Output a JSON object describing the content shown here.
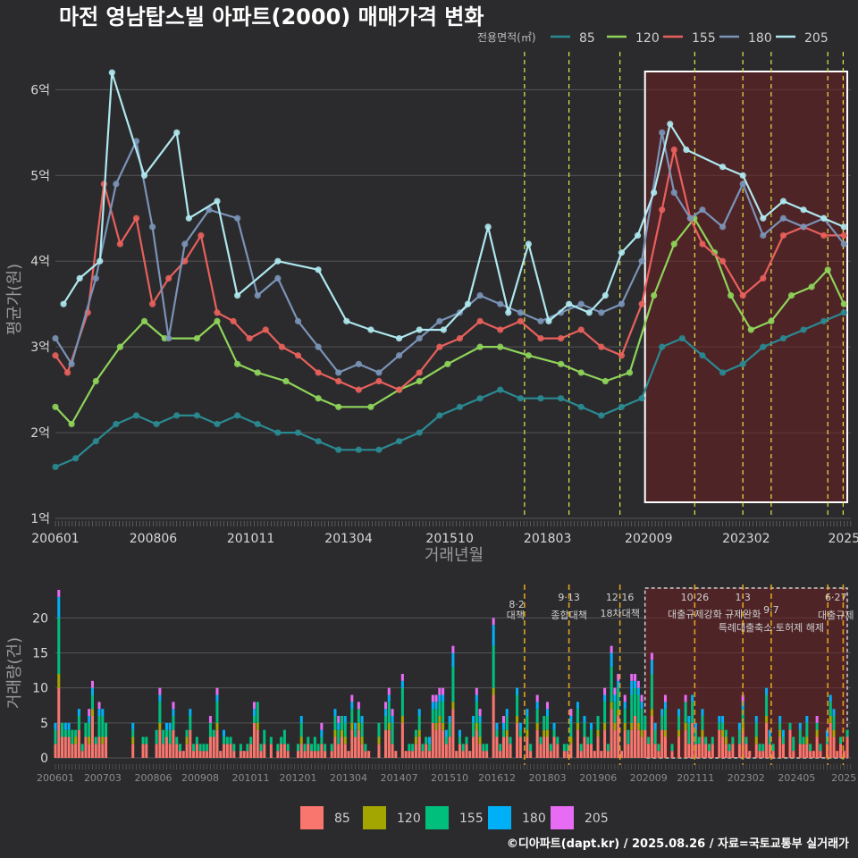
{
  "chart_data": [
    {
      "type": "line",
      "title": "마전 영남탑스빌 아파트(2000) 매매가격 변화",
      "xlabel": "거래년월",
      "ylabel": "평균가(원)",
      "legend_title": "전용면적(㎡)",
      "legend_position": "top-right",
      "x_ticks": [
        "200601",
        "200806",
        "201011",
        "201304",
        "201510",
        "201803",
        "202009",
        "202302",
        "2025"
      ],
      "y_ticks": [
        "1억",
        "2억",
        "3억",
        "4억",
        "5억",
        "6억"
      ],
      "ylim": [
        1.0,
        6.4
      ],
      "xlim": [
        2006.0,
        2025.67
      ],
      "grid": true,
      "series": [
        {
          "name": "85",
          "color": "#2a8a92",
          "points": [
            [
              2006.0,
              1.6
            ],
            [
              2006.5,
              1.7
            ],
            [
              2007.0,
              1.9
            ],
            [
              2007.5,
              2.1
            ],
            [
              2008.0,
              2.2
            ],
            [
              2008.5,
              2.1
            ],
            [
              2009.0,
              2.2
            ],
            [
              2009.5,
              2.2
            ],
            [
              2010.0,
              2.1
            ],
            [
              2010.5,
              2.2
            ],
            [
              2011.0,
              2.1
            ],
            [
              2011.5,
              2.0
            ],
            [
              2012.0,
              2.0
            ],
            [
              2012.5,
              1.9
            ],
            [
              2013.0,
              1.8
            ],
            [
              2013.5,
              1.8
            ],
            [
              2014.0,
              1.8
            ],
            [
              2014.5,
              1.9
            ],
            [
              2015.0,
              2.0
            ],
            [
              2015.5,
              2.2
            ],
            [
              2016.0,
              2.3
            ],
            [
              2016.5,
              2.4
            ],
            [
              2017.0,
              2.5
            ],
            [
              2017.5,
              2.4
            ],
            [
              2018.0,
              2.4
            ],
            [
              2018.5,
              2.4
            ],
            [
              2019.0,
              2.3
            ],
            [
              2019.5,
              2.2
            ],
            [
              2020.0,
              2.3
            ],
            [
              2020.5,
              2.4
            ],
            [
              2021.0,
              3.0
            ],
            [
              2021.5,
              3.1
            ],
            [
              2022.0,
              2.9
            ],
            [
              2022.5,
              2.7
            ],
            [
              2023.0,
              2.8
            ],
            [
              2023.5,
              3.0
            ],
            [
              2024.0,
              3.1
            ],
            [
              2024.5,
              3.2
            ],
            [
              2025.0,
              3.3
            ],
            [
              2025.5,
              3.4
            ]
          ]
        },
        {
          "name": "120",
          "color": "#8fd45a",
          "points": [
            [
              2006.0,
              2.3
            ],
            [
              2006.4,
              2.1
            ],
            [
              2007.0,
              2.6
            ],
            [
              2007.6,
              3.0
            ],
            [
              2008.2,
              3.3
            ],
            [
              2008.7,
              3.1
            ],
            [
              2009.5,
              3.1
            ],
            [
              2010.0,
              3.3
            ],
            [
              2010.5,
              2.8
            ],
            [
              2011.0,
              2.7
            ],
            [
              2011.7,
              2.6
            ],
            [
              2012.5,
              2.4
            ],
            [
              2013.0,
              2.3
            ],
            [
              2013.8,
              2.3
            ],
            [
              2014.5,
              2.5
            ],
            [
              2015.0,
              2.6
            ],
            [
              2015.7,
              2.8
            ],
            [
              2016.5,
              3.0
            ],
            [
              2017.0,
              3.0
            ],
            [
              2017.7,
              2.9
            ],
            [
              2018.5,
              2.8
            ],
            [
              2019.0,
              2.7
            ],
            [
              2019.6,
              2.6
            ],
            [
              2020.2,
              2.7
            ],
            [
              2020.8,
              3.6
            ],
            [
              2021.3,
              4.2
            ],
            [
              2021.8,
              4.5
            ],
            [
              2022.3,
              4.1
            ],
            [
              2022.7,
              3.6
            ],
            [
              2023.2,
              3.2
            ],
            [
              2023.7,
              3.3
            ],
            [
              2024.2,
              3.6
            ],
            [
              2024.7,
              3.7
            ],
            [
              2025.1,
              3.9
            ],
            [
              2025.5,
              3.5
            ]
          ]
        },
        {
          "name": "155",
          "color": "#e8605c",
          "points": [
            [
              2006.0,
              2.9
            ],
            [
              2006.3,
              2.7
            ],
            [
              2006.8,
              3.4
            ],
            [
              2007.2,
              4.9
            ],
            [
              2007.6,
              4.2
            ],
            [
              2008.0,
              4.5
            ],
            [
              2008.4,
              3.5
            ],
            [
              2008.8,
              3.8
            ],
            [
              2009.2,
              4.0
            ],
            [
              2009.6,
              4.3
            ],
            [
              2010.0,
              3.4
            ],
            [
              2010.4,
              3.3
            ],
            [
              2010.8,
              3.1
            ],
            [
              2011.2,
              3.2
            ],
            [
              2011.6,
              3.0
            ],
            [
              2012.0,
              2.9
            ],
            [
              2012.5,
              2.7
            ],
            [
              2013.0,
              2.6
            ],
            [
              2013.5,
              2.5
            ],
            [
              2014.0,
              2.6
            ],
            [
              2014.5,
              2.5
            ],
            [
              2015.0,
              2.7
            ],
            [
              2015.5,
              3.0
            ],
            [
              2016.0,
              3.1
            ],
            [
              2016.5,
              3.3
            ],
            [
              2017.0,
              3.2
            ],
            [
              2017.5,
              3.3
            ],
            [
              2018.0,
              3.1
            ],
            [
              2018.5,
              3.1
            ],
            [
              2019.0,
              3.2
            ],
            [
              2019.5,
              3.0
            ],
            [
              2020.0,
              2.9
            ],
            [
              2020.5,
              3.5
            ],
            [
              2021.0,
              4.6
            ],
            [
              2021.3,
              5.3
            ],
            [
              2021.7,
              4.5
            ],
            [
              2022.0,
              4.2
            ],
            [
              2022.5,
              4.0
            ],
            [
              2023.0,
              3.6
            ],
            [
              2023.5,
              3.8
            ],
            [
              2024.0,
              4.3
            ],
            [
              2024.5,
              4.4
            ],
            [
              2025.0,
              4.3
            ],
            [
              2025.5,
              4.3
            ]
          ]
        },
        {
          "name": "180",
          "color": "#7a93b7",
          "points": [
            [
              2006.0,
              3.1
            ],
            [
              2006.4,
              2.8
            ],
            [
              2007.0,
              3.8
            ],
            [
              2007.5,
              4.9
            ],
            [
              2008.0,
              5.4
            ],
            [
              2008.4,
              4.4
            ],
            [
              2008.8,
              3.1
            ],
            [
              2009.2,
              4.2
            ],
            [
              2009.8,
              4.6
            ],
            [
              2010.5,
              4.5
            ],
            [
              2011.0,
              3.6
            ],
            [
              2011.5,
              3.8
            ],
            [
              2012.0,
              3.3
            ],
            [
              2012.5,
              3.0
            ],
            [
              2013.0,
              2.7
            ],
            [
              2013.5,
              2.8
            ],
            [
              2014.0,
              2.7
            ],
            [
              2014.5,
              2.9
            ],
            [
              2015.0,
              3.1
            ],
            [
              2015.5,
              3.3
            ],
            [
              2016.0,
              3.4
            ],
            [
              2016.5,
              3.6
            ],
            [
              2017.0,
              3.5
            ],
            [
              2017.5,
              3.4
            ],
            [
              2018.0,
              3.3
            ],
            [
              2018.5,
              3.4
            ],
            [
              2019.0,
              3.5
            ],
            [
              2019.5,
              3.4
            ],
            [
              2020.0,
              3.5
            ],
            [
              2020.5,
              4.0
            ],
            [
              2021.0,
              5.5
            ],
            [
              2021.3,
              4.8
            ],
            [
              2021.7,
              4.5
            ],
            [
              2022.0,
              4.6
            ],
            [
              2022.5,
              4.4
            ],
            [
              2023.0,
              4.9
            ],
            [
              2023.5,
              4.3
            ],
            [
              2024.0,
              4.5
            ],
            [
              2024.5,
              4.4
            ],
            [
              2025.0,
              4.5
            ],
            [
              2025.5,
              4.2
            ]
          ]
        },
        {
          "name": "205",
          "color": "#aee8ee",
          "points": [
            [
              2006.2,
              3.5
            ],
            [
              2006.6,
              3.8
            ],
            [
              2007.1,
              4.0
            ],
            [
              2007.4,
              6.2
            ],
            [
              2008.2,
              5.0
            ],
            [
              2009.0,
              5.5
            ],
            [
              2009.3,
              4.5
            ],
            [
              2010.0,
              4.7
            ],
            [
              2010.5,
              3.6
            ],
            [
              2011.5,
              4.0
            ],
            [
              2012.5,
              3.9
            ],
            [
              2013.2,
              3.3
            ],
            [
              2013.8,
              3.2
            ],
            [
              2014.5,
              3.1
            ],
            [
              2015.0,
              3.2
            ],
            [
              2015.6,
              3.2
            ],
            [
              2016.2,
              3.5
            ],
            [
              2016.7,
              4.4
            ],
            [
              2017.2,
              3.4
            ],
            [
              2017.7,
              4.2
            ],
            [
              2018.2,
              3.3
            ],
            [
              2018.7,
              3.5
            ],
            [
              2019.2,
              3.4
            ],
            [
              2019.6,
              3.6
            ],
            [
              2020.0,
              4.1
            ],
            [
              2020.4,
              4.3
            ],
            [
              2020.8,
              4.8
            ],
            [
              2021.2,
              5.6
            ],
            [
              2021.6,
              5.3
            ],
            [
              2022.5,
              5.1
            ],
            [
              2023.0,
              5.0
            ],
            [
              2023.5,
              4.5
            ],
            [
              2024.0,
              4.7
            ],
            [
              2024.5,
              4.6
            ],
            [
              2025.0,
              4.5
            ],
            [
              2025.5,
              4.4
            ]
          ]
        }
      ],
      "policy_lines": [
        2017.6,
        2018.7,
        2019.96,
        2021.81,
        2023.0,
        2023.7,
        2025.1,
        2025.48
      ],
      "highlight_range": [
        2020.58,
        2025.67
      ]
    },
    {
      "type": "bar",
      "stacked": true,
      "ylabel": "거래량(건)",
      "y_ticks": [
        "0",
        "5",
        "10",
        "15",
        "20"
      ],
      "ylim": [
        0,
        24
      ],
      "x_ticks": [
        "200601",
        "200703",
        "200806",
        "200908",
        "201011",
        "201201",
        "201304",
        "201407",
        "201510",
        "201612",
        "201803",
        "201906",
        "202009",
        "202111",
        "202302",
        "202405",
        "2025"
      ],
      "series": [
        {
          "name": "85",
          "color": "#f8766d"
        },
        {
          "name": "120",
          "color": "#a3a500"
        },
        {
          "name": "155",
          "color": "#00bf7d"
        },
        {
          "name": "180",
          "color": "#00b0f6"
        },
        {
          "name": "205",
          "color": "#e76bf3"
        }
      ],
      "annotations": [
        {
          "date": "8·2",
          "label": "대책"
        },
        {
          "date": "9·13",
          "label": "종합대책"
        },
        {
          "date": "12·16",
          "label": "18차대책"
        },
        {
          "date": "10·26",
          "label": "대출규제강화"
        },
        {
          "date": "1·3",
          "label": "규제완화"
        },
        {
          "date": "9·7",
          "label": "특례대출축소·토허제 해제"
        },
        {
          "date": "6·27",
          "label": "대출규제"
        }
      ],
      "peak_value": 23,
      "highlight_range": [
        2020.58,
        2025.67
      ]
    }
  ],
  "credit": "©디아파트(dapt.kr) / 2025.08.26 / 자료=국토교통부 실거래가"
}
